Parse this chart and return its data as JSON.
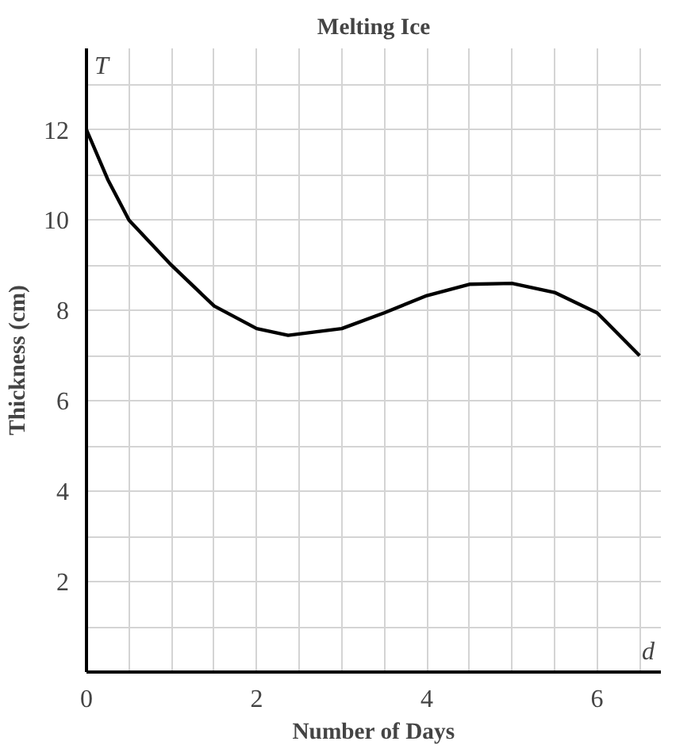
{
  "chart_data": {
    "type": "line",
    "title": "Melting Ice",
    "xlabel": "Number of Days",
    "ylabel": "Thickness (cm)",
    "annotations": [
      "T",
      "d"
    ],
    "x": [
      0,
      0.25,
      0.5,
      1.0,
      1.5,
      2.0,
      2.37,
      3.0,
      3.5,
      4.0,
      4.5,
      5.0,
      5.5,
      6.0,
      6.5
    ],
    "series": [
      {
        "color": "#000000",
        "values": [
          12.0,
          10.9,
          10.0,
          9.0,
          8.1,
          7.6,
          7.45,
          7.6,
          7.95,
          8.33,
          8.58,
          8.6,
          8.4,
          7.95,
          7.0
        ]
      }
    ],
    "xlim": [
      0,
      6.75
    ],
    "ylim": [
      0,
      13.8
    ],
    "xticks": [
      0,
      {
        "value": 0.5,
        "label": null
      },
      {
        "value": 1,
        "label": null
      },
      {
        "value": 1.5,
        "label": null
      },
      2,
      {
        "value": 2.5,
        "label": null
      },
      {
        "value": 3,
        "label": null
      },
      {
        "value": 3.5,
        "label": null
      },
      4,
      {
        "value": 4.5,
        "label": null
      },
      {
        "value": 5,
        "label": null
      },
      {
        "value": 5.5,
        "label": null
      },
      6,
      {
        "value": 6.5,
        "label": null
      }
    ],
    "yticks": [
      {
        "value": 1,
        "label": null
      },
      2,
      {
        "value": 3,
        "label": null
      },
      4,
      {
        "value": 5,
        "label": null
      },
      6,
      {
        "value": 7,
        "label": null
      },
      8,
      {
        "value": 9,
        "label": null
      },
      10,
      {
        "value": 11,
        "label": null
      },
      12,
      {
        "value": 13,
        "label": null
      }
    ],
    "grid": true,
    "marker": "none",
    "line_style": "solid"
  }
}
